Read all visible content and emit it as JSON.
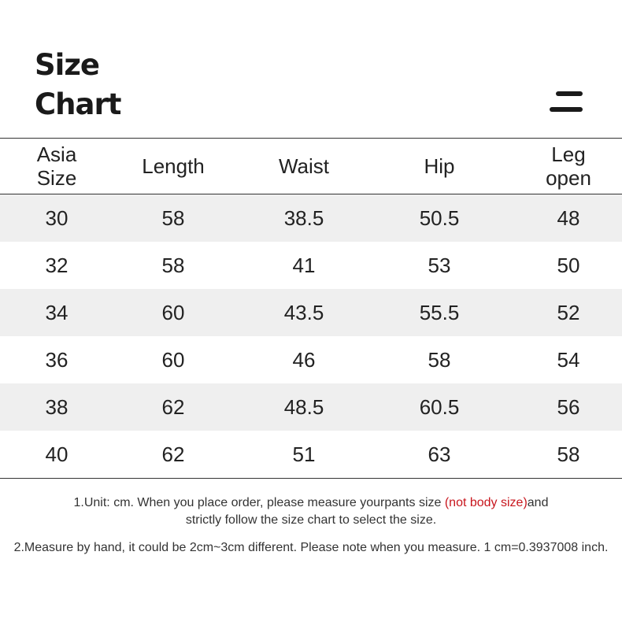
{
  "title": {
    "line1": "Size",
    "line2": "Chart"
  },
  "menu_icon": "menu-icon",
  "table": {
    "headers": [
      "Asia Size",
      "Length",
      "Waist",
      "Hip",
      "Leg open"
    ],
    "rows": [
      [
        "30",
        "58",
        "38.5",
        "50.5",
        "48"
      ],
      [
        "32",
        "58",
        "41",
        "53",
        "50"
      ],
      [
        "34",
        "60",
        "43.5",
        "55.5",
        "52"
      ],
      [
        "36",
        "60",
        "46",
        "58",
        "54"
      ],
      [
        "38",
        "62",
        "48.5",
        "60.5",
        "56"
      ],
      [
        "40",
        "62",
        "51",
        "63",
        "58"
      ]
    ],
    "shaded_row_color": "#efefef"
  },
  "notes": {
    "note1_part1": "1.Unit: cm. When you place order, please measure yourpants size ",
    "note1_highlight": "(not body size)",
    "note1_part2": "and",
    "note1_line2": "strictly follow the size chart to select the size.",
    "note2": "2.Measure by hand, it could be 2cm~3cm different. Please note when you measure. 1 cm=0.3937008 inch.",
    "highlight_color": "#c8161d"
  }
}
